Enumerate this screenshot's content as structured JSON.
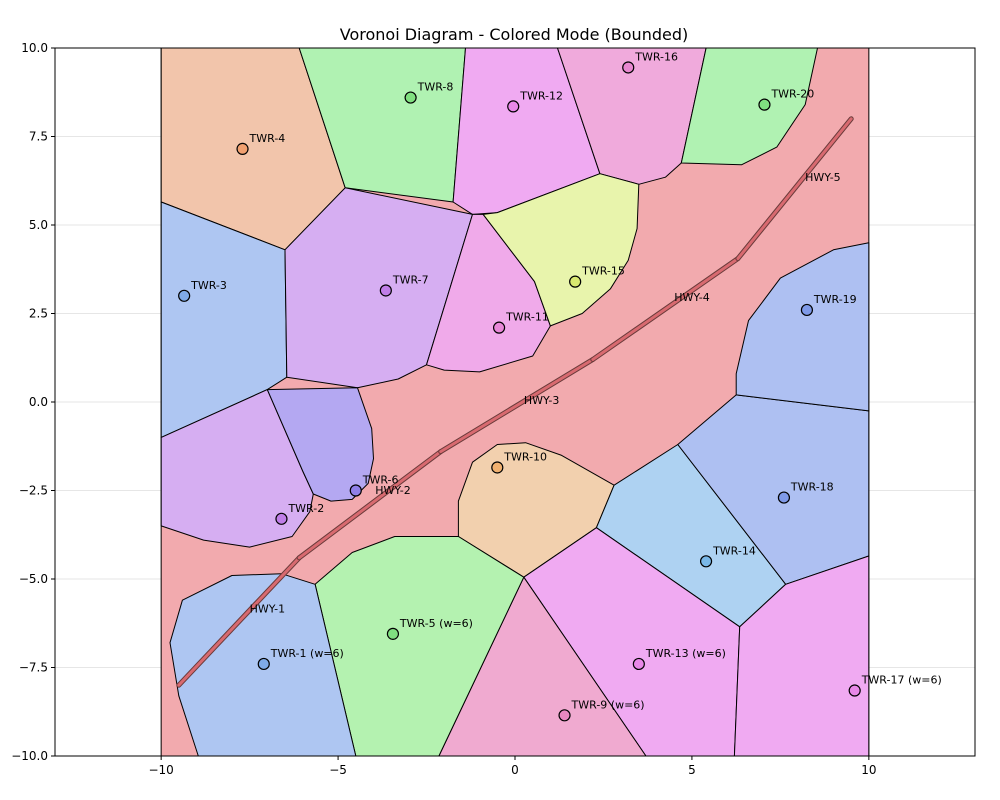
{
  "chart_data": {
    "type": "scatter",
    "title": "Voronoi Diagram - Colored Mode (Bounded)",
    "xlabel": "",
    "ylabel": "",
    "xlim": [
      -13,
      13
    ],
    "ylim": [
      -10,
      10
    ],
    "bounds": [
      -10,
      10,
      -10,
      10
    ],
    "xticks": [
      -10,
      -5,
      0,
      5,
      10
    ],
    "xtick_labels": [
      "−10",
      "−5",
      "0",
      "5",
      "10"
    ],
    "yticks": [
      -10,
      -7.5,
      -5,
      -2.5,
      0,
      2.5,
      5,
      7.5,
      10
    ],
    "ytick_labels": [
      "−10.0",
      "−7.5",
      "−5.0",
      "−2.5",
      "0.0",
      "2.5",
      "5.0",
      "7.5",
      "10.0"
    ],
    "grid": true,
    "colors": {
      "background_region": "#f2aaae",
      "highway_outer": "#6a3a3a",
      "highway_inner": "#d86a70",
      "cell_edge": "#000000",
      "grid": "#e6e6e6"
    },
    "sites": [
      {
        "label": "TWR-1 (w=6)",
        "x": -7.1,
        "y": -7.4,
        "color": "#7faae8"
      },
      {
        "label": "TWR-2",
        "x": -6.6,
        "y": -3.3,
        "color": "#c07ee8"
      },
      {
        "label": "TWR-3",
        "x": -9.35,
        "y": 3.0,
        "color": "#7faae8"
      },
      {
        "label": "TWR-4",
        "x": -7.7,
        "y": 7.15,
        "color": "#f0a070"
      },
      {
        "label": "TWR-5 (w=6)",
        "x": -3.45,
        "y": -6.55,
        "color": "#80e080"
      },
      {
        "label": "TWR-6",
        "x": -4.5,
        "y": -2.5,
        "color": "#9080e8"
      },
      {
        "label": "TWR-7",
        "x": -3.65,
        "y": 3.15,
        "color": "#c07ee8"
      },
      {
        "label": "TWR-8",
        "x": -2.95,
        "y": 8.6,
        "color": "#80e080"
      },
      {
        "label": "TWR-9 (w=6)",
        "x": 1.4,
        "y": -8.85,
        "color": "#e888c0"
      },
      {
        "label": "TWR-10",
        "x": -0.5,
        "y": -1.85,
        "color": "#f0b070"
      },
      {
        "label": "TWR-11",
        "x": -0.45,
        "y": 2.1,
        "color": "#e888d8"
      },
      {
        "label": "TWR-12",
        "x": -0.05,
        "y": 8.35,
        "color": "#e888e8"
      },
      {
        "label": "TWR-13 (w=6)",
        "x": 3.5,
        "y": -7.4,
        "color": "#e888e8"
      },
      {
        "label": "TWR-14",
        "x": 5.4,
        "y": -4.5,
        "color": "#7ab8e8"
      },
      {
        "label": "TWR-15",
        "x": 1.7,
        "y": 3.4,
        "color": "#d8e870"
      },
      {
        "label": "TWR-16",
        "x": 3.2,
        "y": 9.45,
        "color": "#e888d0"
      },
      {
        "label": "TWR-17 (w=6)",
        "x": 9.6,
        "y": -8.15,
        "color": "#e888e8"
      },
      {
        "label": "TWR-18",
        "x": 7.6,
        "y": -2.7,
        "color": "#7f9ae8"
      },
      {
        "label": "TWR-19",
        "x": 8.25,
        "y": 2.6,
        "color": "#7f9ae8"
      },
      {
        "label": "TWR-20",
        "x": 7.05,
        "y": 8.4,
        "color": "#80e080"
      }
    ],
    "highways": [
      {
        "label": "HWY-1",
        "points": [
          [
            -9.5,
            -8.0
          ],
          [
            -6.1,
            -4.4
          ]
        ],
        "label_at": [
          -7.5,
          -5.95
        ]
      },
      {
        "label": "HWY-2",
        "points": [
          [
            -6.1,
            -4.4
          ],
          [
            -2.1,
            -1.4
          ]
        ],
        "label_at": [
          -3.95,
          -2.6
        ]
      },
      {
        "label": "HWY-3",
        "points": [
          [
            -2.1,
            -1.4
          ],
          [
            2.2,
            1.2
          ]
        ],
        "label_at": [
          0.25,
          -0.05
        ]
      },
      {
        "label": "HWY-4",
        "points": [
          [
            2.2,
            1.2
          ],
          [
            6.3,
            4.05
          ]
        ],
        "label_at": [
          4.5,
          2.85
        ]
      },
      {
        "label": "HWY-5",
        "points": [
          [
            6.3,
            4.05
          ],
          [
            9.5,
            8.0
          ]
        ],
        "label_at": [
          8.2,
          6.25
        ]
      }
    ],
    "cells": [
      {
        "site": "TWR-4",
        "color": "#f2c5ab",
        "path": [
          [
            -10,
            10
          ],
          [
            -6.1,
            10
          ],
          [
            -4.8,
            6.05
          ],
          [
            -6.5,
            4.3
          ],
          [
            -10,
            5.65
          ]
        ]
      },
      {
        "site": "TWR-8",
        "color": "#b0f2b2",
        "path": [
          [
            -6.1,
            10
          ],
          [
            -1.4,
            10
          ],
          [
            -1.75,
            5.65
          ],
          [
            -4.8,
            6.05
          ]
        ]
      },
      {
        "site": "TWR-12",
        "color": "#f0aaf2",
        "path": [
          [
            -1.4,
            10
          ],
          [
            1.2,
            10
          ],
          [
            2.4,
            6.45
          ],
          [
            -0.5,
            5.35
          ],
          [
            -1.2,
            5.3
          ],
          [
            -1.75,
            5.65
          ]
        ]
      },
      {
        "site": "TWR-16",
        "color": "#f0aadc",
        "path": [
          [
            1.2,
            10
          ],
          [
            5.4,
            10
          ],
          [
            4.7,
            6.75
          ],
          [
            4.25,
            6.35
          ],
          [
            3.5,
            6.15
          ],
          [
            2.4,
            6.45
          ]
        ]
      },
      {
        "site": "TWR-20",
        "color": "#b0f2b2",
        "path": [
          [
            5.4,
            10
          ],
          [
            8.55,
            10
          ],
          [
            8.2,
            8.4
          ],
          [
            7.4,
            7.2
          ],
          [
            6.4,
            6.7
          ],
          [
            4.7,
            6.75
          ]
        ]
      },
      {
        "site": "TWR-3",
        "color": "#aec6f2",
        "path": [
          [
            -10,
            5.65
          ],
          [
            -6.5,
            4.3
          ],
          [
            -6.45,
            0.7
          ],
          [
            -7.0,
            0.35
          ],
          [
            -10,
            -1.0
          ]
        ]
      },
      {
        "site": "TWR-7",
        "color": "#d6aef2",
        "path": [
          [
            -6.5,
            4.3
          ],
          [
            -4.8,
            6.05
          ],
          [
            -1.2,
            5.3
          ],
          [
            -2.5,
            1.05
          ],
          [
            -3.3,
            0.65
          ],
          [
            -4.45,
            0.4
          ],
          [
            -6.45,
            0.7
          ]
        ]
      },
      {
        "site": "TWR-11",
        "color": "#f0aaea",
        "path": [
          [
            -1.2,
            5.3
          ],
          [
            -0.9,
            5.3
          ],
          [
            0.55,
            3.4
          ],
          [
            1.0,
            2.15
          ],
          [
            0.5,
            1.3
          ],
          [
            -1.0,
            0.85
          ],
          [
            -2.0,
            0.9
          ],
          [
            -2.5,
            1.05
          ]
        ]
      },
      {
        "site": "TWR-15",
        "color": "#e8f4ac",
        "path": [
          [
            -0.9,
            5.3
          ],
          [
            -0.5,
            5.35
          ],
          [
            2.4,
            6.45
          ],
          [
            3.5,
            6.15
          ],
          [
            3.45,
            4.9
          ],
          [
            3.2,
            4.0
          ],
          [
            2.7,
            3.2
          ],
          [
            1.9,
            2.5
          ],
          [
            1.0,
            2.15
          ],
          [
            0.55,
            3.4
          ]
        ]
      },
      {
        "site": "TWR-2",
        "color": "#d6aef2",
        "path": [
          [
            -10,
            -1.0
          ],
          [
            -7.0,
            0.35
          ],
          [
            -6.0,
            -1.95
          ],
          [
            -5.7,
            -2.6
          ],
          [
            -5.8,
            -3.1
          ],
          [
            -6.3,
            -3.8
          ],
          [
            -7.5,
            -4.1
          ],
          [
            -8.8,
            -3.9
          ],
          [
            -10,
            -3.5
          ]
        ]
      },
      {
        "site": "TWR-6",
        "color": "#b4a8f2",
        "path": [
          [
            -7.0,
            0.35
          ],
          [
            -4.45,
            0.4
          ],
          [
            -4.05,
            -0.75
          ],
          [
            -4.0,
            -1.6
          ],
          [
            -4.15,
            -2.3
          ],
          [
            -4.6,
            -2.75
          ],
          [
            -5.2,
            -2.8
          ],
          [
            -5.7,
            -2.6
          ],
          [
            -6.0,
            -1.95
          ]
        ]
      },
      {
        "site": "TWR-10",
        "color": "#f2d0ae",
        "path": [
          [
            -1.6,
            -3.8
          ],
          [
            -1.6,
            -2.8
          ],
          [
            -1.2,
            -1.7
          ],
          [
            -0.5,
            -1.2
          ],
          [
            0.3,
            -1.15
          ],
          [
            1.3,
            -1.5
          ],
          [
            2.8,
            -2.35
          ],
          [
            2.3,
            -3.55
          ],
          [
            0.25,
            -4.95
          ]
        ]
      },
      {
        "site": "TWR-14",
        "color": "#aed2f2",
        "path": [
          [
            2.3,
            -3.55
          ],
          [
            2.8,
            -2.35
          ],
          [
            4.6,
            -1.2
          ],
          [
            7.65,
            -5.15
          ],
          [
            6.35,
            -6.35
          ]
        ]
      },
      {
        "site": "TWR-18",
        "color": "#aec0f2",
        "path": [
          [
            4.6,
            -1.2
          ],
          [
            6.25,
            0.2
          ],
          [
            10,
            -0.25
          ],
          [
            10,
            -4.35
          ],
          [
            7.65,
            -5.15
          ]
        ]
      },
      {
        "site": "TWR-19",
        "color": "#aec0f2",
        "path": [
          [
            6.25,
            0.2
          ],
          [
            10,
            -0.25
          ],
          [
            10,
            4.5
          ],
          [
            9.0,
            4.3
          ],
          [
            7.5,
            3.5
          ],
          [
            6.6,
            2.3
          ],
          [
            6.25,
            0.8
          ]
        ]
      },
      {
        "site": "TWR-13 (w=6)",
        "color": "#f0aaf2",
        "path": [
          [
            0.25,
            -4.95
          ],
          [
            2.3,
            -3.55
          ],
          [
            6.35,
            -6.35
          ],
          [
            6.2,
            -10
          ],
          [
            3.7,
            -10
          ]
        ]
      },
      {
        "site": "TWR-17 (w=6)",
        "color": "#f0aaf2",
        "path": [
          [
            6.35,
            -6.35
          ],
          [
            7.65,
            -5.15
          ],
          [
            10,
            -4.35
          ],
          [
            10,
            -10
          ],
          [
            6.2,
            -10
          ]
        ]
      },
      {
        "site": "TWR-9 (w=6)",
        "color": "#f0aad0",
        "path": [
          [
            0.25,
            -4.95
          ],
          [
            3.7,
            -10
          ],
          [
            -2.15,
            -10
          ]
        ]
      },
      {
        "site": "TWR-5 (w=6)",
        "color": "#b4f2b0",
        "path": [
          [
            -5.65,
            -5.15
          ],
          [
            -4.6,
            -4.25
          ],
          [
            -3.4,
            -3.8
          ],
          [
            -1.6,
            -3.8
          ],
          [
            0.25,
            -4.95
          ],
          [
            -2.15,
            -10
          ],
          [
            -4.5,
            -10
          ]
        ]
      },
      {
        "site": "TWR-1 (w=6)",
        "color": "#aec6f2",
        "path": [
          [
            -8.95,
            -10
          ],
          [
            -4.5,
            -10
          ],
          [
            -5.65,
            -5.15
          ],
          [
            -6.6,
            -4.85
          ],
          [
            -8.0,
            -4.9
          ],
          [
            -9.4,
            -5.6
          ],
          [
            -9.75,
            -6.8
          ],
          [
            -9.5,
            -8.3
          ]
        ]
      }
    ]
  }
}
